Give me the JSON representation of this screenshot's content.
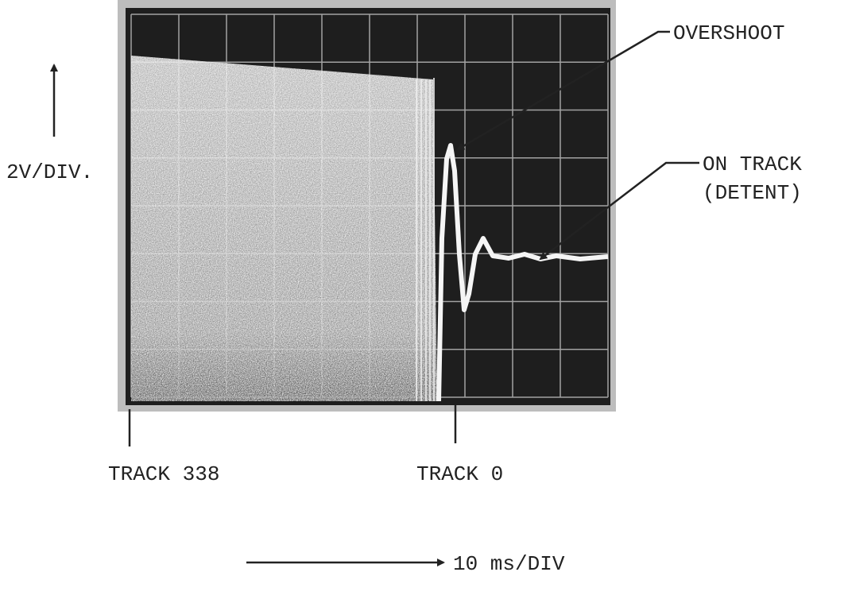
{
  "annotations": {
    "overshoot": "OVERSHOOT",
    "on_track": "ON TRACK",
    "detent": "(DETENT)",
    "vertical_scale": "2V/DIV.",
    "track_338": "TRACK 338",
    "track_0": "TRACK 0",
    "horizontal_scale": "10 ms/DIV"
  }
}
